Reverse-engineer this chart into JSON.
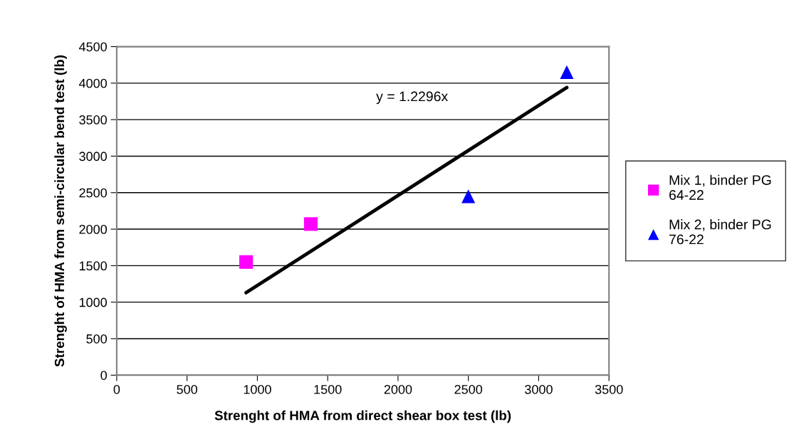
{
  "chart_data": {
    "type": "scatter",
    "xlabel": "Strenght of HMA from direct shear box test (lb)",
    "ylabel": "Strenght of HMA from semi-circular bend test (lb)",
    "series": [
      {
        "name": "Mix 1, binder PG 64-22",
        "color": "#ff00ff",
        "marker": "square",
        "x": [
          920,
          1380
        ],
        "values": [
          1550,
          2070
        ]
      },
      {
        "name": "Mix 2, binder PG 76-22",
        "color": "#0000ff",
        "marker": "triangle",
        "x": [
          2500,
          3200
        ],
        "values": [
          2450,
          4150
        ]
      },
      {
        "type": "line",
        "color": "#000000",
        "marker": "none",
        "x": [
          920,
          3200
        ],
        "values": [
          1130,
          3940
        ]
      }
    ],
    "annotations": [
      "y = 1.2296x"
    ],
    "xlim": [
      0,
      3500
    ],
    "xticks": [
      0,
      500,
      1000,
      1500,
      2000,
      2500,
      3000,
      3500
    ],
    "ylim": [
      0,
      4500
    ],
    "yticks": [
      0,
      500,
      1000,
      1500,
      2000,
      2500,
      3000,
      3500,
      4000,
      4500
    ],
    "grid": "y",
    "legend": "right"
  }
}
